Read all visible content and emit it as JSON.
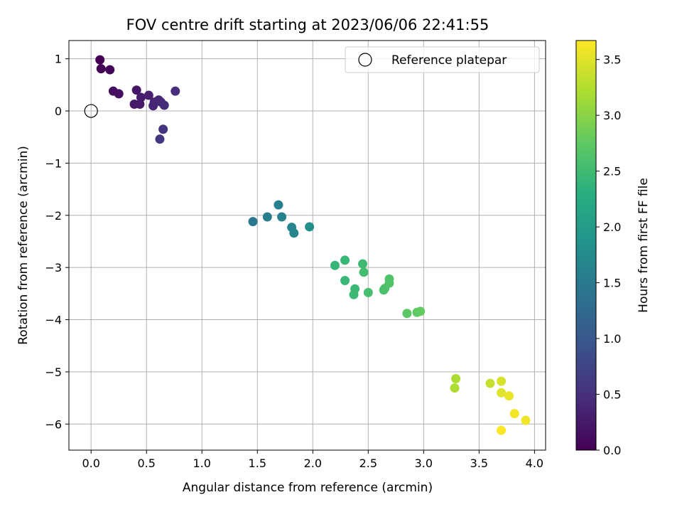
{
  "chart_data": {
    "type": "scatter",
    "title": "FOV centre drift starting at 2023/06/06 22:41:55",
    "xlabel": "Angular distance from reference (arcmin)",
    "ylabel": "Rotation from reference (arcmin)",
    "xlim": [
      -0.2,
      4.1
    ],
    "ylim": [
      -6.5,
      1.35
    ],
    "x_ticks": [
      0.0,
      0.5,
      1.0,
      1.5,
      2.0,
      2.5,
      3.0,
      3.5,
      4.0
    ],
    "x_tick_labels": [
      "0.0",
      "0.5",
      "1.0",
      "1.5",
      "2.0",
      "2.5",
      "3.0",
      "3.5",
      "4.0"
    ],
    "y_ticks": [
      1,
      0,
      -1,
      -2,
      -3,
      -4,
      -5,
      -6
    ],
    "y_tick_labels": [
      "1",
      "0",
      "−1",
      "−2",
      "−3",
      "−4",
      "−5",
      "−6"
    ],
    "grid": true,
    "legend": {
      "placement": "top-right",
      "entries": [
        "Reference platepar"
      ]
    },
    "reference_point": {
      "x": 0.0,
      "y": 0.0
    },
    "colorbar": {
      "label": "Hours from first FF file",
      "range": [
        0.0,
        3.67
      ],
      "ticks": [
        0.0,
        0.5,
        1.0,
        1.5,
        2.0,
        2.5,
        3.0,
        3.5
      ],
      "tick_labels": [
        "0.0",
        "0.5",
        "1.0",
        "1.5",
        "2.0",
        "2.5",
        "3.0",
        "3.5"
      ],
      "colormap": "viridis"
    },
    "points": [
      {
        "x": 0.08,
        "y": 0.98,
        "hours": 0.0
      },
      {
        "x": 0.09,
        "y": 0.81,
        "hours": 0.02
      },
      {
        "x": 0.17,
        "y": 0.79,
        "hours": 0.05
      },
      {
        "x": 0.2,
        "y": 0.38,
        "hours": 0.13
      },
      {
        "x": 0.25,
        "y": 0.33,
        "hours": 0.15
      },
      {
        "x": 0.39,
        "y": 0.13,
        "hours": 0.25
      },
      {
        "x": 0.41,
        "y": 0.4,
        "hours": 0.22
      },
      {
        "x": 0.44,
        "y": 0.13,
        "hours": 0.27
      },
      {
        "x": 0.45,
        "y": 0.26,
        "hours": 0.28
      },
      {
        "x": 0.52,
        "y": 0.3,
        "hours": 0.32
      },
      {
        "x": 0.56,
        "y": 0.1,
        "hours": 0.38
      },
      {
        "x": 0.57,
        "y": 0.17,
        "hours": 0.38
      },
      {
        "x": 0.61,
        "y": 0.21,
        "hours": 0.4
      },
      {
        "x": 0.63,
        "y": 0.17,
        "hours": 0.42
      },
      {
        "x": 0.66,
        "y": 0.11,
        "hours": 0.45
      },
      {
        "x": 0.76,
        "y": 0.38,
        "hours": 0.5
      },
      {
        "x": 0.65,
        "y": -0.35,
        "hours": 0.55
      },
      {
        "x": 0.62,
        "y": -0.54,
        "hours": 0.57
      },
      {
        "x": 1.46,
        "y": -2.12,
        "hours": 1.48
      },
      {
        "x": 1.59,
        "y": -2.03,
        "hours": 1.55
      },
      {
        "x": 1.69,
        "y": -1.8,
        "hours": 1.58
      },
      {
        "x": 1.72,
        "y": -2.03,
        "hours": 1.6
      },
      {
        "x": 1.81,
        "y": -2.23,
        "hours": 1.65
      },
      {
        "x": 1.83,
        "y": -2.34,
        "hours": 1.67
      },
      {
        "x": 1.97,
        "y": -2.22,
        "hours": 1.8
      },
      {
        "x": 2.2,
        "y": -2.96,
        "hours": 2.42
      },
      {
        "x": 2.29,
        "y": -2.86,
        "hours": 2.44
      },
      {
        "x": 2.29,
        "y": -3.25,
        "hours": 2.45
      },
      {
        "x": 2.38,
        "y": -3.41,
        "hours": 2.47
      },
      {
        "x": 2.37,
        "y": -3.52,
        "hours": 2.48
      },
      {
        "x": 2.45,
        "y": -2.93,
        "hours": 2.5
      },
      {
        "x": 2.46,
        "y": -3.09,
        "hours": 2.52
      },
      {
        "x": 2.5,
        "y": -3.48,
        "hours": 2.55
      },
      {
        "x": 2.64,
        "y": -3.43,
        "hours": 2.6
      },
      {
        "x": 2.65,
        "y": -3.4,
        "hours": 2.61
      },
      {
        "x": 2.69,
        "y": -3.22,
        "hours": 2.63
      },
      {
        "x": 2.69,
        "y": -3.3,
        "hours": 2.64
      },
      {
        "x": 2.85,
        "y": -3.88,
        "hours": 2.72
      },
      {
        "x": 2.94,
        "y": -3.86,
        "hours": 2.75
      },
      {
        "x": 2.97,
        "y": -3.84,
        "hours": 2.77
      },
      {
        "x": 3.29,
        "y": -5.13,
        "hours": 3.2
      },
      {
        "x": 3.28,
        "y": -5.31,
        "hours": 3.22
      },
      {
        "x": 3.6,
        "y": -5.22,
        "hours": 3.35
      },
      {
        "x": 3.7,
        "y": -5.18,
        "hours": 3.45
      },
      {
        "x": 3.7,
        "y": -5.4,
        "hours": 3.5
      },
      {
        "x": 3.77,
        "y": -5.46,
        "hours": 3.55
      },
      {
        "x": 3.82,
        "y": -5.8,
        "hours": 3.62
      },
      {
        "x": 3.92,
        "y": -5.93,
        "hours": 3.6
      },
      {
        "x": 3.7,
        "y": -6.12,
        "hours": 3.67
      }
    ]
  }
}
